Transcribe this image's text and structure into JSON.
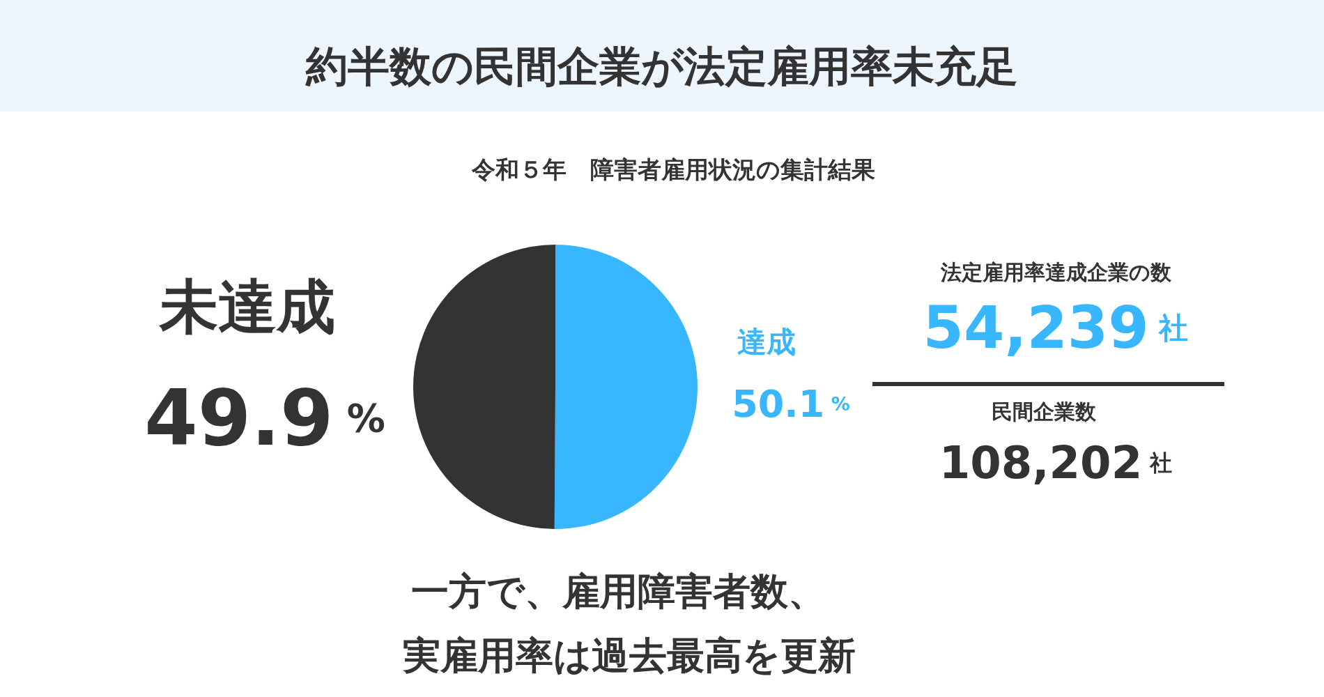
{
  "chart_data": {
    "type": "pie",
    "title": "約半数の民間企業が法定雇用率未充足",
    "subtitle": "令和５年　障害者雇用状況の集計結果",
    "categories": [
      "達成",
      "未達成"
    ],
    "values": [
      50.1,
      49.9
    ],
    "colors": [
      "#38b6ff",
      "#333333"
    ],
    "value_labels": [
      "50.1 %",
      "49.9 %"
    ],
    "annotations": [
      "法定雇用率達成企業の数",
      "54,239 社",
      "民間企業数",
      "108,202 社",
      "一方で、雇用障害者数、",
      "実雇用率は過去最高を更新"
    ]
  }
}
